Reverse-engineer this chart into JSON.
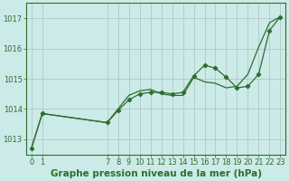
{
  "background_color": "#cceae8",
  "plot_bg_color": "#cceae8",
  "grid_color": "#b0c8c8",
  "line_color": "#2d6e2d",
  "title": "Graphe pression niveau de la mer (hPa)",
  "ylim": [
    1012.5,
    1017.5
  ],
  "yticks": [
    1013,
    1014,
    1015,
    1016,
    1017
  ],
  "xticks": [
    0,
    1,
    7,
    8,
    9,
    10,
    11,
    12,
    13,
    14,
    15,
    16,
    17,
    18,
    19,
    20,
    21,
    22,
    23
  ],
  "title_fontsize": 7.5,
  "tick_fontsize": 6.0,
  "title_color": "#2d6e2d",
  "tick_color": "#2d6e2d",
  "x_line1": [
    0,
    1,
    7,
    8,
    9,
    10,
    11,
    12,
    13,
    14,
    15,
    16,
    17,
    18,
    19,
    20,
    21,
    22,
    23
  ],
  "y_line1": [
    1012.7,
    1013.85,
    1013.55,
    1014.0,
    1014.45,
    1014.6,
    1014.65,
    1014.5,
    1014.45,
    1014.45,
    1015.05,
    1014.9,
    1014.85,
    1014.7,
    1014.75,
    1015.15,
    1016.05,
    1016.85,
    1017.05
  ],
  "x_line2": [
    0,
    1,
    7,
    8,
    9,
    10,
    11,
    12,
    13,
    14,
    15,
    16,
    17,
    18,
    19,
    20,
    21,
    22,
    23
  ],
  "y_line2": [
    1012.7,
    1013.85,
    1013.55,
    1013.95,
    1014.3,
    1014.5,
    1014.55,
    1014.55,
    1014.5,
    1014.55,
    1015.1,
    1015.45,
    1015.35,
    1015.05,
    1014.7,
    1014.75,
    1015.15,
    1016.6,
    1017.05
  ]
}
